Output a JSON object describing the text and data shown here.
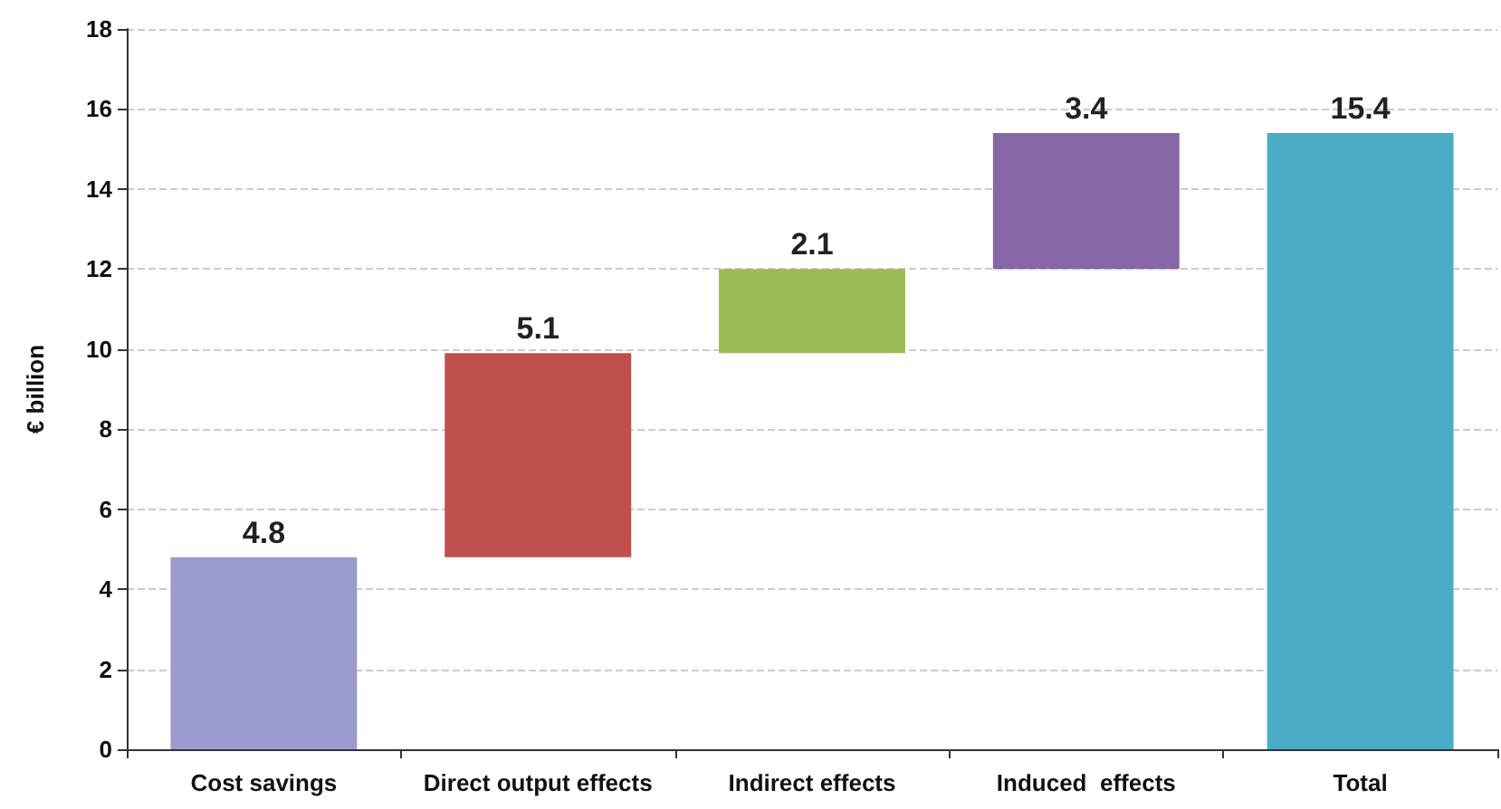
{
  "chart_data": {
    "type": "bar",
    "ylabel": "€ billion",
    "categories": [
      "Cost savings",
      "Direct output effects",
      "Indirect effects",
      "Induced  effects",
      "Total"
    ],
    "values": [
      4.8,
      5.1,
      2.1,
      3.4,
      15.4
    ],
    "base": [
      0,
      4.8,
      9.9,
      12.0,
      0
    ],
    "colors": [
      "#9b9bcf",
      "#c0504d",
      "#9bbb59",
      "#8667a8",
      "#4bacc6"
    ],
    "ylim": [
      0,
      18
    ],
    "yticks": [
      0,
      2,
      4,
      6,
      8,
      10,
      12,
      14,
      16,
      18
    ],
    "grid": "y",
    "data_labels": true
  }
}
